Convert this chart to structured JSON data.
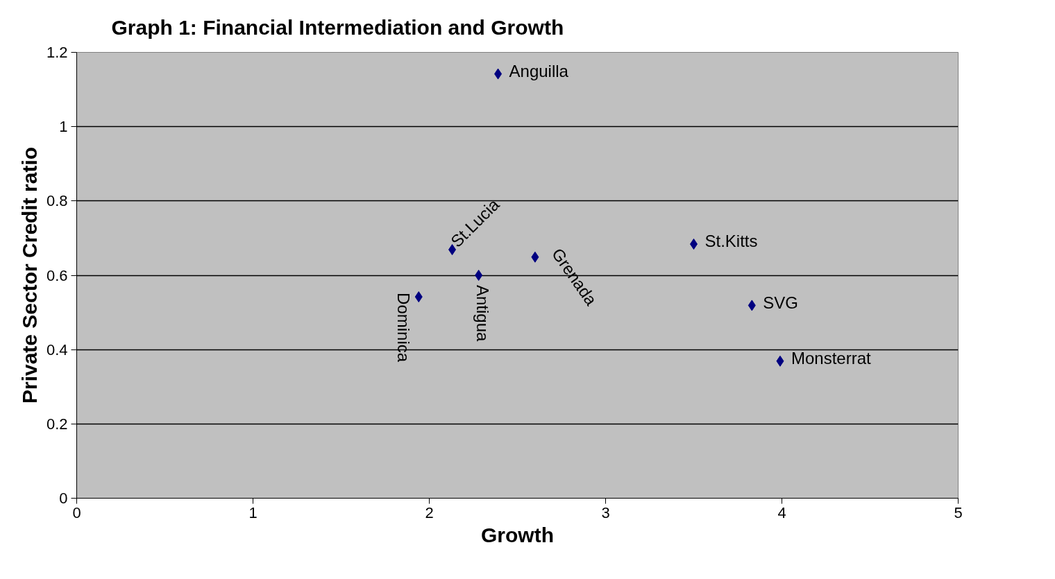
{
  "chart_data": {
    "type": "scatter",
    "title": "Graph 1: Financial Intermediation and Growth",
    "xlabel": "Growth",
    "ylabel": "Private Sector Credit ratio",
    "series": [
      {
        "color": "#000080",
        "x": [
          2.39,
          2.13,
          2.28,
          1.94,
          2.6,
          3.5,
          3.83,
          3.99
        ],
        "values": [
          1.142,
          0.669,
          0.6,
          0.542,
          0.649,
          0.684,
          0.519,
          0.369
        ]
      }
    ],
    "annotations": [
      {
        "text": "Anguilla",
        "x": 2.39,
        "y": 1.142
      },
      {
        "text": "St.Lucia",
        "x": 2.13,
        "y": 0.669
      },
      {
        "text": "Antigua",
        "x": 2.28,
        "y": 0.6
      },
      {
        "text": "Dominica",
        "x": 1.94,
        "y": 0.542
      },
      {
        "text": "Grenada",
        "x": 2.6,
        "y": 0.649
      },
      {
        "text": "St.Kitts",
        "x": 3.5,
        "y": 0.684
      },
      {
        "text": "SVG",
        "x": 3.83,
        "y": 0.519
      },
      {
        "text": "Monsterrat",
        "x": 3.99,
        "y": 0.369
      }
    ],
    "xlim": [
      0,
      5
    ],
    "xticks": [
      0,
      1,
      2,
      3,
      4,
      5
    ],
    "ylim": [
      0,
      1.2
    ],
    "yticks": [
      0,
      0.2,
      0.4,
      0.6,
      0.8,
      1,
      1.2
    ],
    "grid": "y",
    "marker": "diamond"
  }
}
